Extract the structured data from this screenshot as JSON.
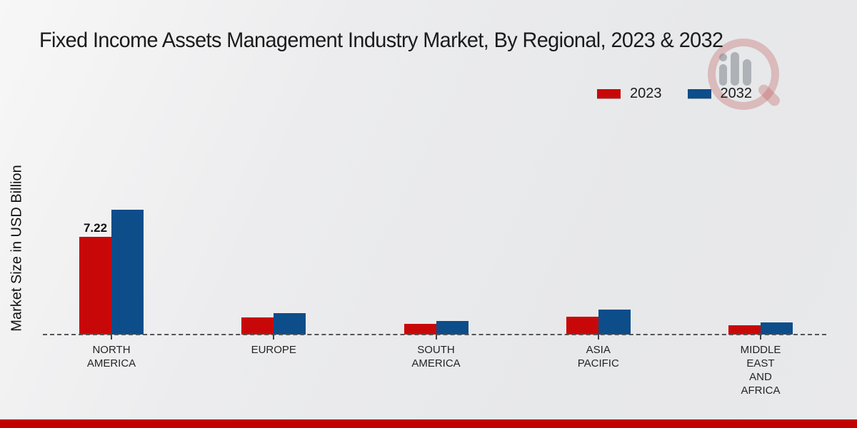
{
  "header": {
    "title": "Fixed Income Assets Management Industry Market, By Regional, 2023 & 2032"
  },
  "icons": {
    "watermark": "magnifier-bar-chart-logo-watermark"
  },
  "legend": {
    "items": [
      {
        "label": "2023",
        "color": "#c80808"
      },
      {
        "label": "2032",
        "color": "#0c4d8a"
      }
    ]
  },
  "chart_data": {
    "type": "bar",
    "title": "Fixed Income Assets Management Industry Market, By Regional, 2023 & 2032",
    "xlabel": "",
    "ylabel": "Market Size in USD Billion",
    "categories": [
      "North America",
      "Europe",
      "South America",
      "Asia Pacific",
      "Middle East and Africa"
    ],
    "category_label_lines": [
      [
        "NORTH",
        "AMERICA"
      ],
      [
        "EUROPE"
      ],
      [
        "SOUTH",
        "AMERICA"
      ],
      [
        "ASIA",
        "PACIFIC"
      ],
      [
        "MIDDLE",
        "EAST",
        "AND",
        "AFRICA"
      ]
    ],
    "series": [
      {
        "name": "2023",
        "color": "#c80808",
        "values": [
          7.22,
          1.26,
          0.79,
          1.32,
          0.67
        ]
      },
      {
        "name": "2032",
        "color": "#0c4d8a",
        "values": [
          9.2,
          1.58,
          1.01,
          1.83,
          0.91
        ]
      }
    ],
    "value_labels": [
      {
        "series_index": 0,
        "category_index": 0,
        "text": "7.22"
      }
    ],
    "ylim": [
      0,
      10
    ],
    "grid": false,
    "baseline_style": "dashed",
    "legend_position": "top-right"
  },
  "footer": {
    "accent_color": "#c20000"
  }
}
